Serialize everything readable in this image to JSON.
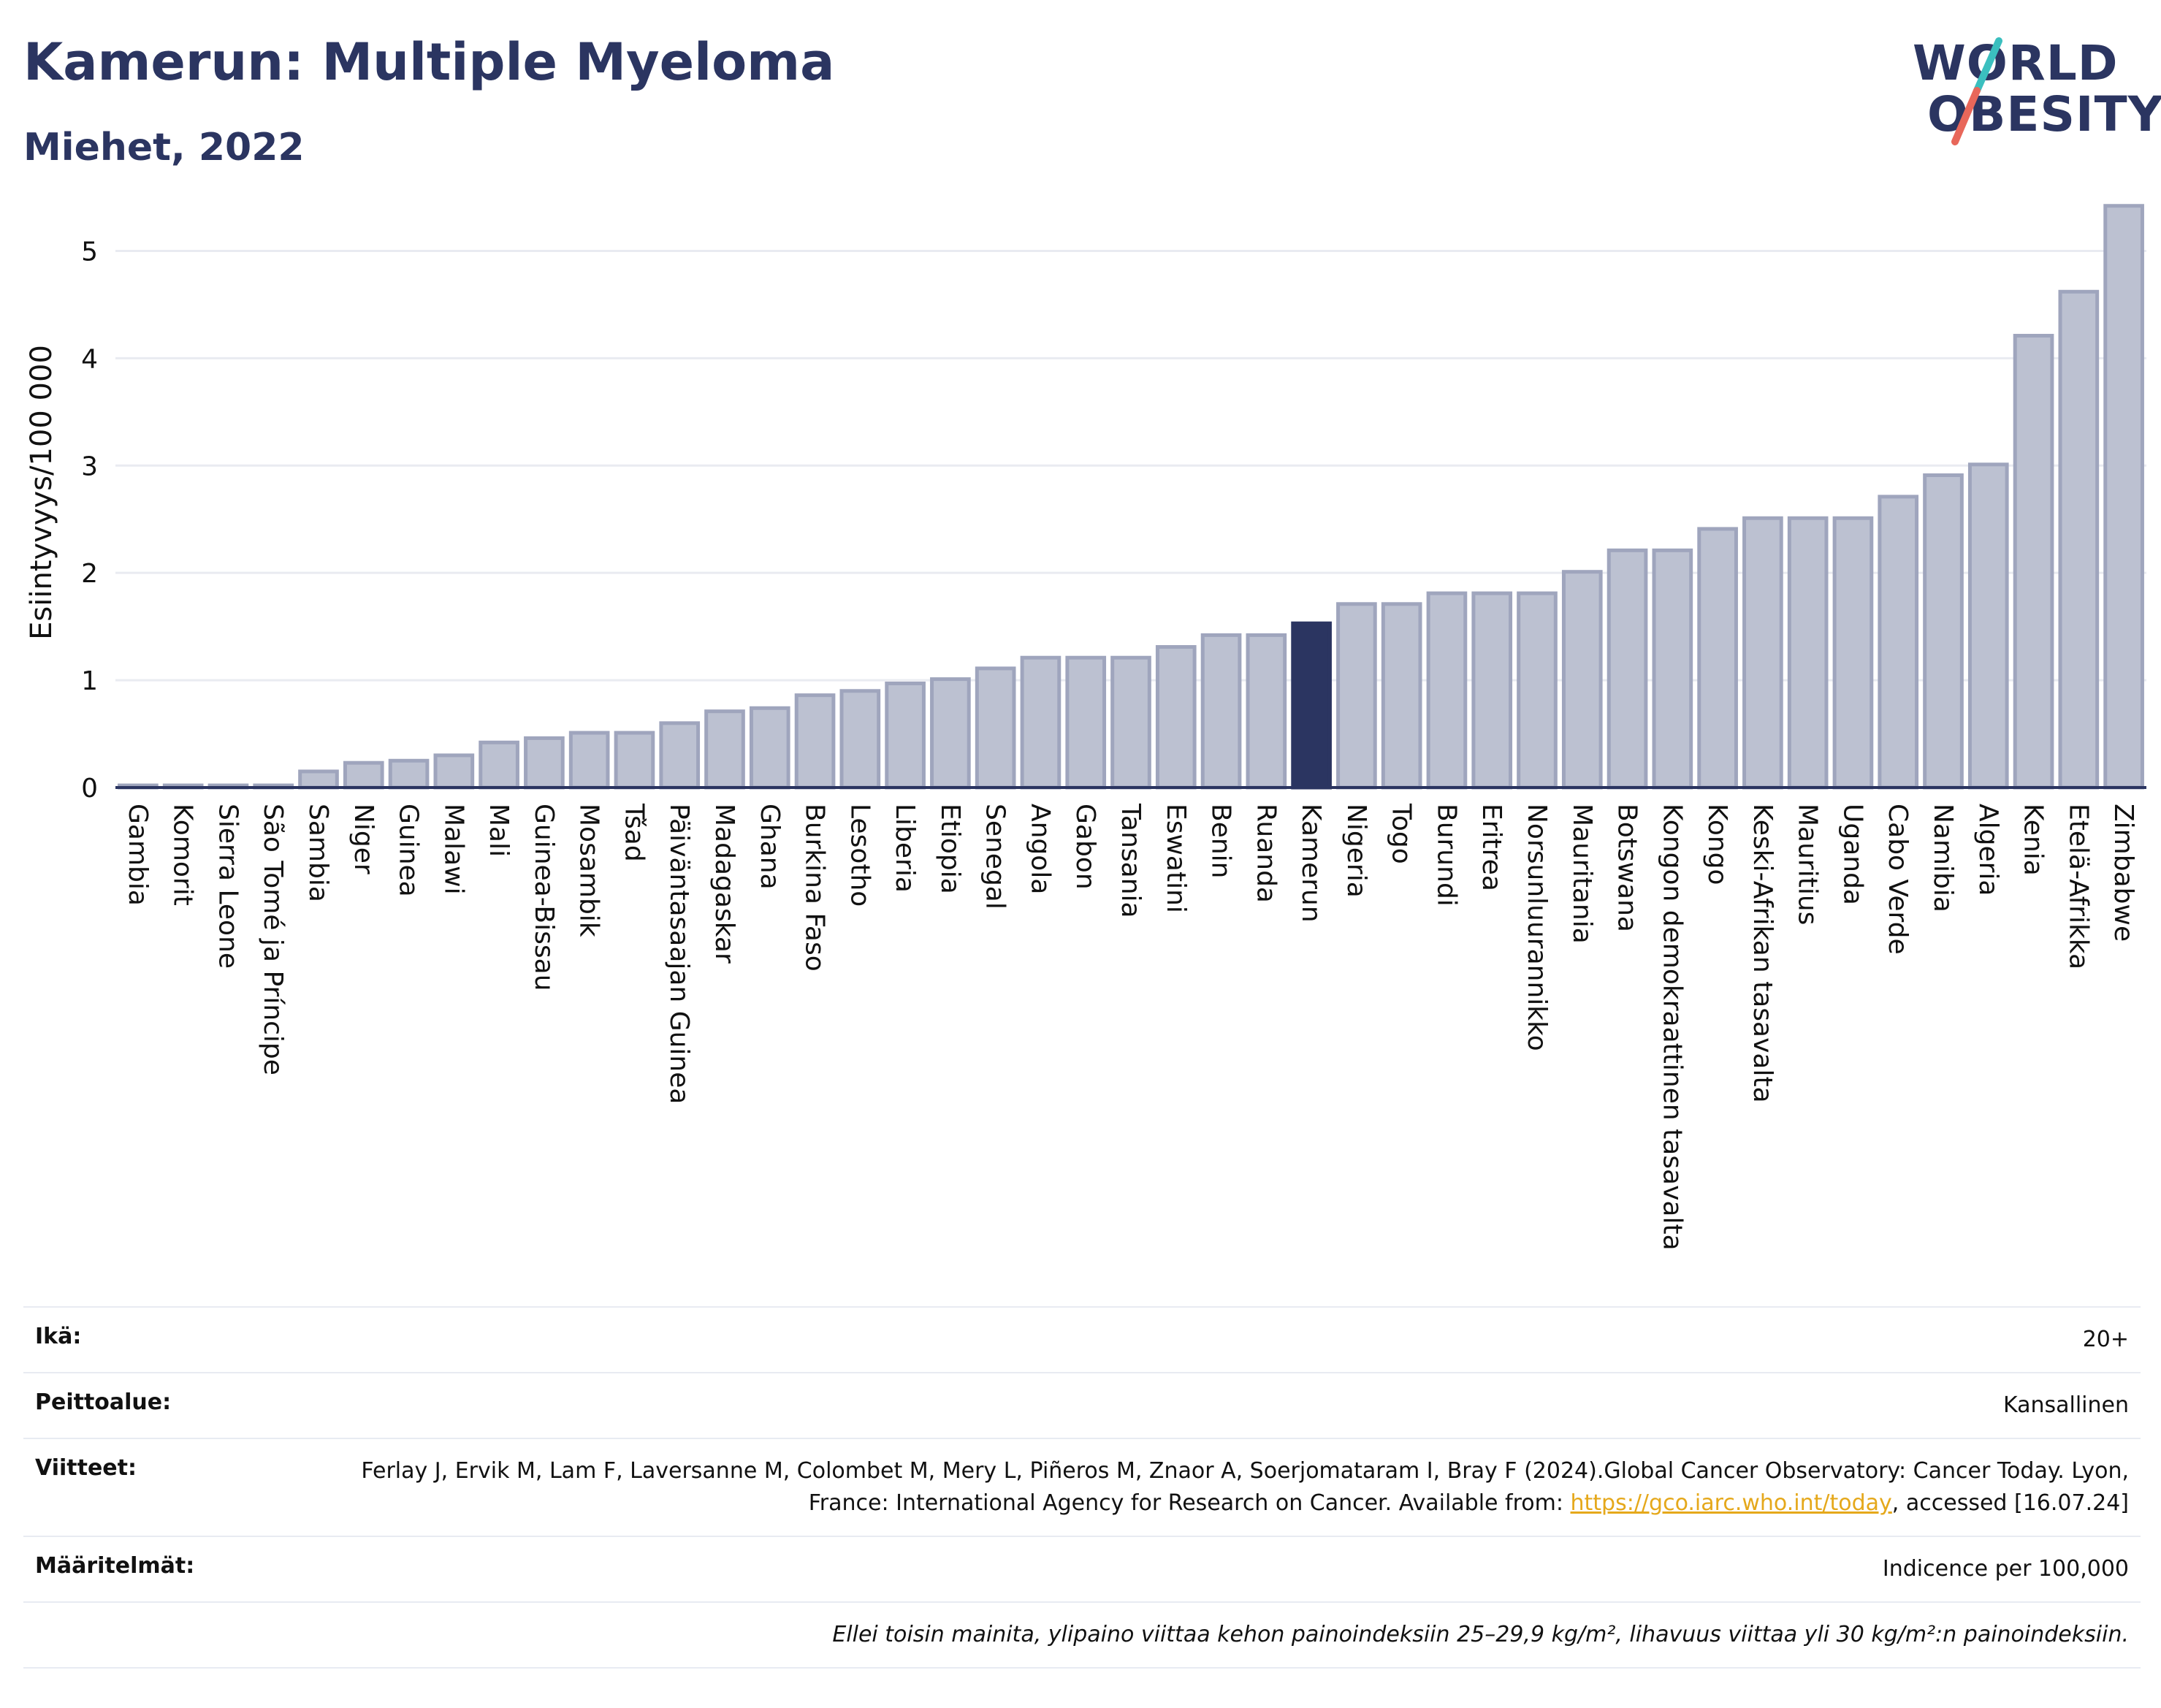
{
  "title": "Kamerun: Multiple Myeloma",
  "subtitle": "Miehet, 2022",
  "logo": {
    "line1": "WORLD",
    "line2": "OBESITY",
    "slash_colors": [
      "#3bbfbf",
      "#e8675a"
    ]
  },
  "colors": {
    "bar": "#bcc1d1",
    "bar_border": "#9fa5bd",
    "highlight": "#2b3561",
    "grid": "#e9ebf1",
    "axis": "#2b3561",
    "text": "#111111"
  },
  "chart_data": {
    "type": "bar",
    "ylabel": "Esiintyvyys/100 000",
    "ylim": [
      0,
      5.5
    ],
    "yticks": [
      0,
      1,
      2,
      3,
      4,
      5
    ],
    "grid": true,
    "highlight": "Kamerun",
    "categories": [
      "Gambia",
      "Komorit",
      "Sierra Leone",
      "São Tomé ja Príncipe",
      "Sambia",
      "Niger",
      "Guinea",
      "Malawi",
      "Mali",
      "Guinea-Bissau",
      "Mosambik",
      "Tšad",
      "Päiväntasaajan Guinea",
      "Madagaskar",
      "Ghana",
      "Burkina Faso",
      "Lesotho",
      "Liberia",
      "Etiopia",
      "Senegal",
      "Angola",
      "Gabon",
      "Tansania",
      "Eswatini",
      "Benin",
      "Ruanda",
      "Kamerun",
      "Nigeria",
      "Togo",
      "Burundi",
      "Eritrea",
      "Norsunluurannikko",
      "Mauritania",
      "Botswana",
      "Kongon demokraattinen tasavalta",
      "Kongo",
      "Keski-Afrikan tasavalta",
      "Mauritius",
      "Uganda",
      "Cabo Verde",
      "Namibia",
      "Algeria",
      "Kenia",
      "Etelä-Afrikka",
      "Zimbabwe"
    ],
    "values": [
      0.02,
      0.02,
      0.02,
      0.02,
      0.15,
      0.23,
      0.25,
      0.3,
      0.42,
      0.46,
      0.51,
      0.51,
      0.6,
      0.71,
      0.74,
      0.86,
      0.9,
      0.97,
      1.01,
      1.11,
      1.21,
      1.21,
      1.21,
      1.31,
      1.42,
      1.42,
      1.53,
      1.71,
      1.71,
      1.81,
      1.81,
      1.81,
      2.01,
      2.21,
      2.21,
      2.41,
      2.51,
      2.51,
      2.51,
      2.71,
      2.91,
      3.01,
      4.21,
      4.62,
      5.42
    ]
  },
  "info": {
    "age_label": "Ikä:",
    "age_value": "20+",
    "coverage_label": "Peittoalue:",
    "coverage_value": "Kansallinen",
    "refs_label": "Viitteet:",
    "refs_text_1": "Ferlay J, Ervik M, Lam F, Laversanne M, Colombet M, Mery L, Piñeros M, Znaor A, Soerjomataram I, Bray F (2024).Global Cancer Observatory: Cancer Today. Lyon, France: International Agency for Research on Cancer. Available from: ",
    "refs_link": "https://gco.iarc.who.int/today",
    "refs_text_2": ", accessed [16.07.24]",
    "definitions_label": "Määritelmät:",
    "definitions_value": "Indicence per 100,000",
    "note": "Ellei toisin mainita, ylipaino viittaa kehon painoindeksiin 25–29,9 kg/m², lihavuus viittaa yli 30 kg/m²:n painoindeksiin."
  }
}
